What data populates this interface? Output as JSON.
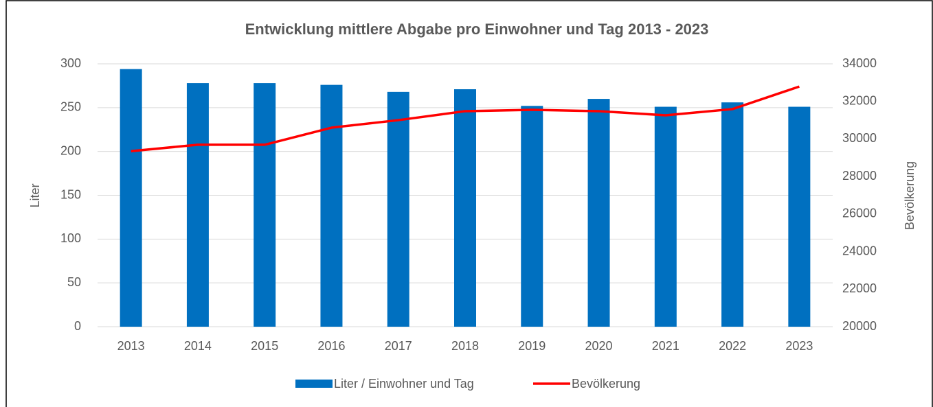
{
  "chart_data": {
    "type": "bar",
    "title": "Entwicklung mittlere Abgabe pro Einwohner und Tag 2013 - 2023",
    "categories": [
      "2013",
      "2014",
      "2015",
      "2016",
      "2017",
      "2018",
      "2019",
      "2020",
      "2021",
      "2022",
      "2023"
    ],
    "series": [
      {
        "name": "Liter / Einwohner und Tag",
        "type": "bar",
        "color": "#0070c0",
        "values": [
          294,
          278,
          278,
          276,
          268,
          271,
          252,
          260,
          251,
          256,
          251
        ]
      },
      {
        "name": "Bevölkerung",
        "type": "line",
        "axis": "y2",
        "color": "#ff0000",
        "values": [
          29350,
          29690,
          29690,
          30600,
          31000,
          31480,
          31550,
          31480,
          31260,
          31590,
          32790
        ]
      }
    ],
    "ylabel": "Liter",
    "y2label": "Bevölkerung",
    "ylim": [
      0,
      300
    ],
    "yticks": [
      0,
      50,
      100,
      150,
      200,
      250,
      300
    ],
    "y2lim": [
      20000,
      34000
    ],
    "y2ticks": [
      20000,
      22000,
      24000,
      26000,
      28000,
      30000,
      32000,
      34000
    ],
    "grid": true,
    "legend": "bottom"
  }
}
